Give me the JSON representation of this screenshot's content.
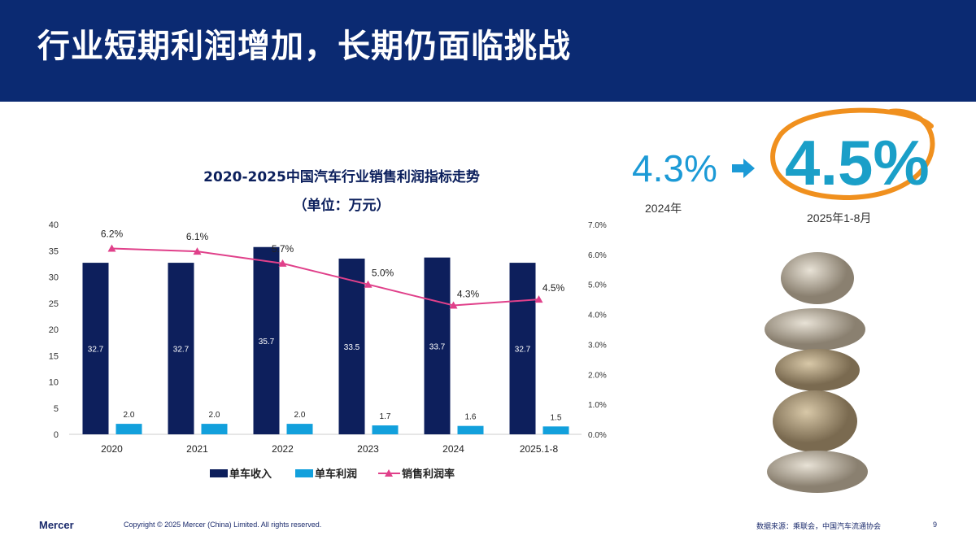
{
  "header": {
    "title": "行业短期利润增加，长期仍面临挑战"
  },
  "highlight": {
    "from_value": "4.3%",
    "from_label": "2024年",
    "to_value": "4.5%",
    "to_label": "2025年1-8月",
    "arrow_icon": "arrow-right-icon",
    "accent": "#1c9ad6",
    "circle_color": "#f0901e"
  },
  "chart_data": {
    "type": "bar+line",
    "title": "2020-2025中国汽车行业销售利润指标走势",
    "subtitle": "（单位：万元）",
    "categories": [
      "2020",
      "2021",
      "2022",
      "2023",
      "2024",
      "2025.1-8"
    ],
    "series": [
      {
        "name": "单车收入",
        "type": "bar",
        "axis": "left",
        "color": "#0d1f5c",
        "values": [
          32.7,
          32.7,
          35.7,
          33.5,
          33.7,
          32.7
        ],
        "labels": [
          "32.7",
          "32.7",
          "35.7",
          "33.5",
          "33.7",
          "32.7"
        ]
      },
      {
        "name": "单车利润",
        "type": "bar",
        "axis": "left",
        "color": "#12a0dc",
        "values": [
          2.0,
          2.0,
          2.0,
          1.7,
          1.6,
          1.5
        ],
        "labels": [
          "2.0",
          "2.0",
          "2.0",
          "1.7",
          "1.6",
          "1.5"
        ]
      },
      {
        "name": "销售利润率",
        "type": "line",
        "axis": "right",
        "color": "#e0408a",
        "values": [
          6.2,
          6.1,
          5.7,
          5.0,
          4.3,
          4.5
        ],
        "labels": [
          "6.2%",
          "6.1%",
          "5.7%",
          "5.0%",
          "4.3%",
          "4.5%"
        ]
      }
    ],
    "left_axis": {
      "ylim": [
        0,
        40
      ],
      "ticks": [
        "0",
        "5",
        "10",
        "15",
        "20",
        "25",
        "30",
        "35",
        "40"
      ]
    },
    "right_axis": {
      "ylim": [
        0,
        7
      ],
      "ticks": [
        "0.0%",
        "1.0%",
        "2.0%",
        "3.0%",
        "4.0%",
        "5.0%",
        "6.0%",
        "7.0%"
      ]
    },
    "grid": false,
    "legend": "bottom"
  },
  "footer": {
    "logo": "Mercer",
    "copyright": "Copyright © 2025 Mercer (China) Limited. All rights reserved.",
    "source": "数据来源：乘联会，中国汽车流通协会",
    "page": "9"
  }
}
